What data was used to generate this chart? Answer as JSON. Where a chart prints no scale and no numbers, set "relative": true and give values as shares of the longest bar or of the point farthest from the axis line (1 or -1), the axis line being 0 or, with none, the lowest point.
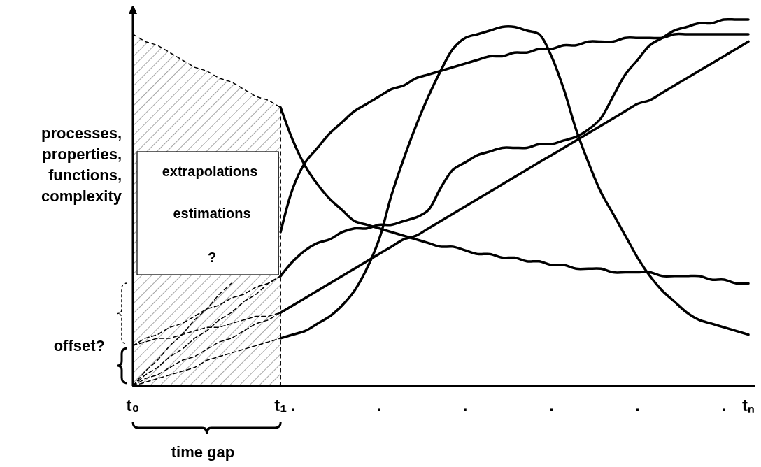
{
  "chart_data": {
    "type": "line",
    "relative": true,
    "ylabel": "processes, properties, functions, complexity",
    "annotations": [
      "extrapolations",
      "estimations",
      "?",
      "offset?",
      "time gap"
    ],
    "categories": [
      "t₀",
      null,
      null,
      null,
      null,
      null,
      null,
      null,
      null,
      null,
      null,
      null,
      "t₁",
      ".",
      null,
      null,
      null,
      null,
      null,
      null,
      ".",
      null,
      null,
      null,
      null,
      null,
      null,
      ".",
      null,
      null,
      null,
      null,
      null,
      null,
      ".",
      null,
      null,
      null,
      null,
      null,
      null,
      ".",
      null,
      null,
      null,
      null,
      null,
      null,
      ".",
      null,
      "tₙ"
    ],
    "series": [
      {
        "type": "area",
        "color": "#000000",
        "line_style": "dashed",
        "values": [
          0.96,
          0.94,
          0.93,
          0.91,
          0.89,
          0.87,
          0.86,
          0.84,
          0.83,
          0.81,
          0.79,
          0.78,
          0.76,
          null,
          null,
          null,
          null,
          null,
          null,
          null,
          null,
          null,
          null,
          null,
          null,
          null,
          null,
          null,
          null,
          null,
          null,
          null,
          null,
          null,
          null,
          null,
          null,
          null,
          null,
          null,
          null,
          null,
          null,
          null,
          null,
          null,
          null,
          null,
          null,
          null,
          null
        ]
      },
      {
        "color": "#000000",
        "line_style": "dashed",
        "values": [
          0,
          0.04,
          0.07,
          0.11,
          0.14,
          0.18,
          0.21,
          0.25,
          0.28,
          null,
          null,
          null,
          null,
          null,
          null,
          null,
          null,
          null,
          null,
          null,
          null,
          null,
          null,
          null,
          null,
          null,
          null,
          null,
          null,
          null,
          null,
          null,
          null,
          null,
          null,
          null,
          null,
          null,
          null,
          null,
          null,
          null,
          null,
          null,
          null,
          null,
          null,
          null,
          null,
          null,
          null
        ]
      },
      {
        "color": "#000000",
        "line_style": "dashed",
        "values": [
          0,
          0.03,
          0.05,
          0.08,
          0.1,
          0.13,
          0.15,
          0.18,
          0.2,
          0.23,
          0.25,
          0.28,
          0.3,
          null,
          null,
          null,
          null,
          null,
          null,
          null,
          null,
          null,
          null,
          null,
          null,
          null,
          null,
          null,
          null,
          null,
          null,
          null,
          null,
          null,
          null,
          null,
          null,
          null,
          null,
          null,
          null,
          null,
          null,
          null,
          null,
          null,
          null,
          null,
          null,
          null,
          null
        ]
      },
      {
        "color": "#000000",
        "line_style": "dashed",
        "values": [
          0,
          0.02,
          0.03,
          0.05,
          0.07,
          0.08,
          0.1,
          0.12,
          0.13,
          0.15,
          0.17,
          0.18,
          0.2,
          null,
          null,
          null,
          null,
          null,
          null,
          null,
          null,
          null,
          null,
          null,
          null,
          null,
          null,
          null,
          null,
          null,
          null,
          null,
          null,
          null,
          null,
          null,
          null,
          null,
          null,
          null,
          null,
          null,
          null,
          null,
          null,
          null,
          null,
          null,
          null,
          null,
          null
        ]
      },
      {
        "color": "#000000",
        "line_style": "dashed",
        "values": [
          0,
          0.01,
          0.02,
          0.03,
          0.04,
          0.05,
          0.07,
          0.08,
          0.09,
          0.1,
          0.11,
          0.12,
          0.13,
          null,
          null,
          null,
          null,
          null,
          null,
          null,
          null,
          null,
          null,
          null,
          null,
          null,
          null,
          null,
          null,
          null,
          null,
          null,
          null,
          null,
          null,
          null,
          null,
          null,
          null,
          null,
          null,
          null,
          null,
          null,
          null,
          null,
          null,
          null,
          null,
          null,
          null
        ]
      },
      {
        "color": "#000000",
        "line_style": "dashed",
        "values": [
          0.11,
          0.13,
          0.14,
          0.16,
          0.17,
          0.19,
          0.21,
          0.22,
          0.24,
          0.25,
          0.27,
          0.28,
          0.3,
          null,
          null,
          null,
          null,
          null,
          null,
          null,
          null,
          null,
          null,
          null,
          null,
          null,
          null,
          null,
          null,
          null,
          null,
          null,
          null,
          null,
          null,
          null,
          null,
          null,
          null,
          null,
          null,
          null,
          null,
          null,
          null,
          null,
          null,
          null,
          null,
          null,
          null
        ]
      },
      {
        "color": "#000000",
        "line_style": "dashed",
        "values": [
          0.11,
          0.12,
          0.13,
          0.13,
          0.14,
          0.15,
          0.16,
          0.16,
          0.17,
          0.18,
          0.19,
          0.19,
          0.2,
          null,
          null,
          null,
          null,
          null,
          null,
          null,
          null,
          null,
          null,
          null,
          null,
          null,
          null,
          null,
          null,
          null,
          null,
          null,
          null,
          null,
          null,
          null,
          null,
          null,
          null,
          null,
          null,
          null,
          null,
          null,
          null,
          null,
          null,
          null,
          null,
          null,
          null
        ]
      },
      {
        "color": "#000000",
        "line_style": "solid",
        "values": [
          null,
          null,
          null,
          null,
          null,
          null,
          null,
          null,
          null,
          null,
          null,
          null,
          0.76,
          0.67,
          0.6,
          0.55,
          0.51,
          0.48,
          0.45,
          0.44,
          0.43,
          0.42,
          0.41,
          0.4,
          0.39,
          0.38,
          0.38,
          0.37,
          0.36,
          0.36,
          0.35,
          0.35,
          0.34,
          0.34,
          0.33,
          0.33,
          0.32,
          0.32,
          0.32,
          0.31,
          0.31,
          0.31,
          0.31,
          0.3,
          0.3,
          0.3,
          0.3,
          0.29,
          0.29,
          0.28,
          0.28
        ]
      },
      {
        "color": "#000000",
        "line_style": "solid",
        "values": [
          null,
          null,
          null,
          null,
          null,
          null,
          null,
          null,
          null,
          null,
          null,
          null,
          0.42,
          0.54,
          0.61,
          0.65,
          0.69,
          0.72,
          0.75,
          0.77,
          0.79,
          0.81,
          0.82,
          0.84,
          0.85,
          0.86,
          0.87,
          0.88,
          0.89,
          0.9,
          0.9,
          0.91,
          0.91,
          0.92,
          0.92,
          0.93,
          0.93,
          0.94,
          0.94,
          0.94,
          0.95,
          0.95,
          0.95,
          0.95,
          0.96,
          0.96,
          0.96,
          0.96,
          0.96,
          0.96,
          0.96
        ]
      },
      {
        "color": "#000000",
        "line_style": "solid",
        "values": [
          null,
          null,
          null,
          null,
          null,
          null,
          null,
          null,
          null,
          null,
          null,
          null,
          0.3,
          0.34,
          0.37,
          0.39,
          0.4,
          0.42,
          0.43,
          0.43,
          0.44,
          0.44,
          0.45,
          0.46,
          0.48,
          0.54,
          0.59,
          0.61,
          0.63,
          0.64,
          0.65,
          0.65,
          0.65,
          0.66,
          0.66,
          0.67,
          0.68,
          0.7,
          0.73,
          0.79,
          0.85,
          0.89,
          0.93,
          0.95,
          0.97,
          0.98,
          0.99,
          0.99,
          1.0,
          1.0,
          1.0
        ]
      },
      {
        "color": "#000000",
        "line_style": "solid",
        "values": [
          null,
          null,
          null,
          null,
          null,
          null,
          null,
          null,
          null,
          null,
          null,
          null,
          0.2,
          0.22,
          0.24,
          0.26,
          0.28,
          0.3,
          0.32,
          0.34,
          0.36,
          0.38,
          0.4,
          0.41,
          0.43,
          0.45,
          0.47,
          0.49,
          0.51,
          0.53,
          0.55,
          0.57,
          0.59,
          0.61,
          0.63,
          0.65,
          0.67,
          0.69,
          0.71,
          0.73,
          0.75,
          0.77,
          0.78,
          0.8,
          0.82,
          0.84,
          0.86,
          0.88,
          0.9,
          0.92,
          0.94
        ]
      },
      {
        "color": "#000000",
        "line_style": "solid",
        "values": [
          null,
          null,
          null,
          null,
          null,
          null,
          null,
          null,
          null,
          null,
          null,
          null,
          0.13,
          0.14,
          0.15,
          0.17,
          0.19,
          0.22,
          0.26,
          0.32,
          0.4,
          0.52,
          0.62,
          0.71,
          0.79,
          0.86,
          0.92,
          0.95,
          0.96,
          0.97,
          0.98,
          0.98,
          0.97,
          0.96,
          0.9,
          0.81,
          0.7,
          0.61,
          0.53,
          0.47,
          0.41,
          0.35,
          0.3,
          0.26,
          0.23,
          0.2,
          0.18,
          0.17,
          0.16,
          0.15,
          0.14
        ]
      }
    ]
  }
}
